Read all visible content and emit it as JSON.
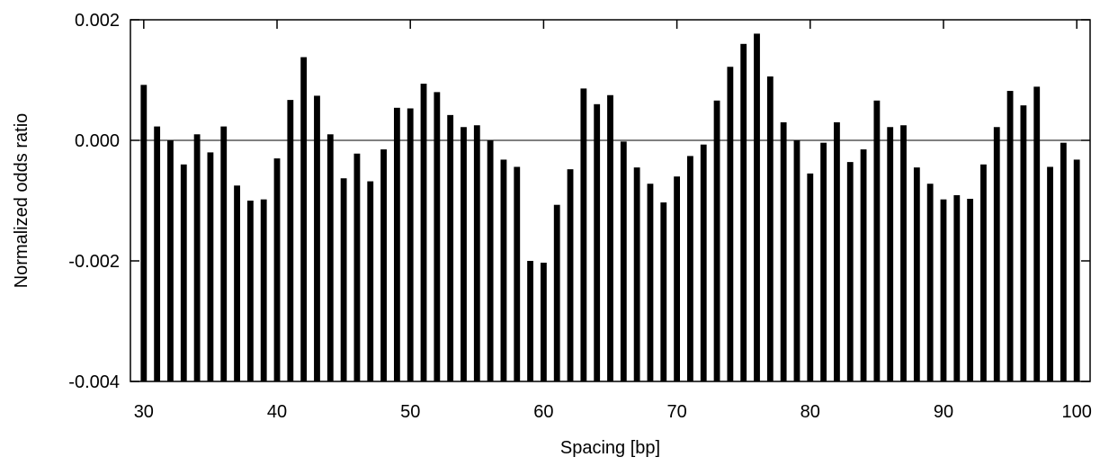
{
  "chart_data": {
    "type": "bar",
    "title": "",
    "xlabel": "Spacing [bp]",
    "ylabel": "Normalized odds ratio",
    "xlim": [
      29,
      101
    ],
    "ylim": [
      -0.004,
      0.002
    ],
    "xticks": [
      30,
      40,
      50,
      60,
      70,
      80,
      90,
      100
    ],
    "xtick_labels": [
      "30",
      "40",
      "50",
      "60",
      "70",
      "80",
      "90",
      "100"
    ],
    "yticks": [
      -0.004,
      -0.002,
      0.0,
      0.002
    ],
    "ytick_labels": [
      "-0.004",
      "-0.002",
      "0.000",
      "0.002"
    ],
    "grid": false,
    "baseline": -0.004,
    "x": [
      30,
      31,
      32,
      33,
      34,
      35,
      36,
      37,
      38,
      39,
      40,
      41,
      42,
      43,
      44,
      45,
      46,
      47,
      48,
      49,
      50,
      51,
      52,
      53,
      54,
      55,
      56,
      57,
      58,
      59,
      60,
      61,
      62,
      63,
      64,
      65,
      66,
      67,
      68,
      69,
      70,
      71,
      72,
      73,
      74,
      75,
      76,
      77,
      78,
      79,
      80,
      81,
      82,
      83,
      84,
      85,
      86,
      87,
      88,
      89,
      90,
      91,
      92,
      93,
      94,
      95,
      96,
      97,
      98,
      99,
      100
    ],
    "values": [
      0.00092,
      0.00023,
      0.0,
      -0.0004,
      0.0001,
      -0.0002,
      0.00023,
      -0.00075,
      -0.001,
      -0.00098,
      -0.0003,
      0.00067,
      0.00138,
      0.00074,
      0.0001,
      -0.00063,
      -0.00022,
      -0.00068,
      -0.00015,
      0.00054,
      0.00053,
      0.00094,
      0.0008,
      0.00042,
      0.00022,
      0.00025,
      0.0,
      -0.00032,
      -0.00044,
      -0.002,
      -0.00203,
      -0.00107,
      -0.00048,
      0.00086,
      0.0006,
      0.00075,
      -2e-05,
      -0.00045,
      -0.00072,
      -0.00103,
      -0.0006,
      -0.00026,
      -7e-05,
      0.00066,
      0.00122,
      0.0016,
      0.00177,
      0.00106,
      0.0003,
      0.0,
      -0.00055,
      -4e-05,
      0.0003,
      -0.00036,
      -0.00015,
      0.00066,
      0.00022,
      0.00025,
      -0.00045,
      -0.00072,
      -0.00098,
      -0.00091,
      -0.00097,
      -0.0004,
      0.00022,
      0.00082,
      0.00058,
      0.00089,
      -0.00044,
      -4e-05,
      -0.00032
    ]
  }
}
